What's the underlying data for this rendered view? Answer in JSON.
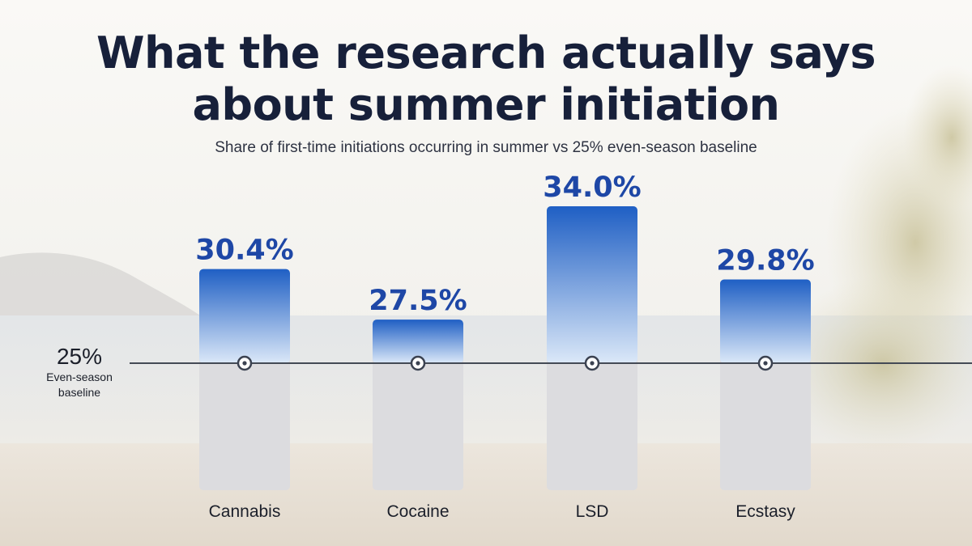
{
  "title_lines": [
    "What the research actually says",
    "about summer initiation"
  ],
  "subtitle": "Share of first-time initiations occurring in summer vs 25% even-season baseline",
  "colors": {
    "title": "#17203a",
    "value_label": "#1e47a6",
    "bar_top": "#1f5fc4",
    "bar_bottom": "#dbe8f8",
    "bar_track": "#dcdcdf",
    "baseline": "#444a55"
  },
  "chart_data": {
    "type": "bar",
    "categories": [
      "Cannabis",
      "Cocaine",
      "LSD",
      "Ecstasy"
    ],
    "values": [
      30.4,
      27.5,
      34.0,
      29.8
    ],
    "value_labels": [
      "30.4%",
      "27.5%",
      "34.0%",
      "29.8%"
    ],
    "baseline": {
      "value": 25,
      "label_value": "25%",
      "label_lines": [
        "Even-season",
        "baseline"
      ]
    },
    "title": "What the research actually says about summer initiation",
    "subtitle": "Share of first-time initiations occurring in summer vs 25% even-season baseline",
    "xlabel": "",
    "ylabel": "",
    "grid": false,
    "legend": "none"
  }
}
